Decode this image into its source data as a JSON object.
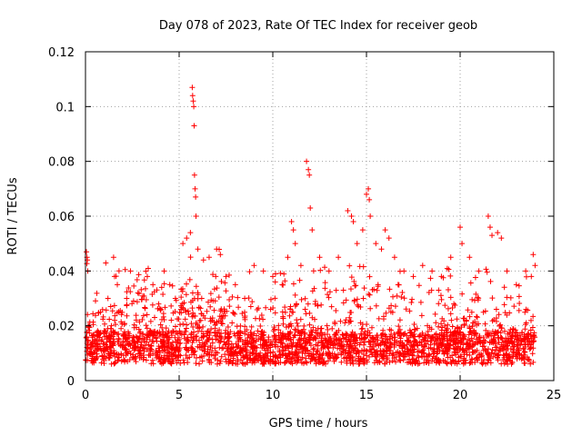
{
  "chart_data": {
    "type": "scatter",
    "title": "Day 078 of 2023, Rate Of TEC Index for receiver geob",
    "xlabel": "GPS time / hours",
    "ylabel": "ROTI / TECUs",
    "xlim": [
      0,
      25
    ],
    "ylim": [
      0,
      0.12
    ],
    "xticks": [
      0,
      5,
      10,
      15,
      20,
      25
    ],
    "yticks": [
      0,
      0.02,
      0.04,
      0.06,
      0.08,
      0.1,
      0.12
    ],
    "xtick_labels": [
      "0",
      "5",
      "10",
      "15",
      "20",
      "25"
    ],
    "ytick_labels": [
      "0",
      "0.02",
      "0.04",
      "0.06",
      "0.08",
      "0.1",
      "0.12"
    ],
    "grid": true,
    "marker": "+",
    "series_color": "#ff0000",
    "series": [
      {
        "x": [
          0.05,
          0.08,
          0.1,
          0.12,
          0.15,
          0.2,
          0.3,
          0.5,
          0.8,
          1.2,
          1.5,
          1.55,
          1.7,
          2.2,
          2.4,
          2.8,
          3.3,
          3.6,
          4.2,
          4.5,
          4.8,
          5.2,
          5.4,
          5.6,
          5.7,
          5.72,
          5.75,
          5.78,
          5.8,
          5.82,
          5.85,
          5.88,
          5.9,
          6.0,
          6.3,
          6.6,
          7.0,
          7.2,
          7.5,
          8.0,
          8.5,
          9.0,
          9.5,
          10.0,
          10.5,
          10.8,
          11.0,
          11.1,
          11.2,
          11.5,
          11.8,
          11.9,
          11.95,
          12.0,
          12.1,
          12.5,
          13.0,
          13.5,
          14.0,
          14.2,
          14.3,
          14.5,
          14.8,
          15.0,
          15.1,
          15.15,
          15.2,
          15.5,
          15.8,
          16.0,
          16.2,
          16.5,
          17.0,
          17.5,
          18.0,
          18.5,
          19.0,
          19.5,
          20.0,
          20.1,
          20.5,
          21.0,
          21.5,
          21.6,
          21.7,
          22.0,
          22.2,
          22.5,
          23.0,
          23.5,
          23.8,
          23.9,
          24.0
        ],
        "y": [
          0.047,
          0.045,
          0.044,
          0.04,
          0.02,
          0.01,
          0.012,
          0.015,
          0.025,
          0.03,
          0.045,
          0.038,
          0.035,
          0.03,
          0.04,
          0.032,
          0.038,
          0.035,
          0.04,
          0.035,
          0.03,
          0.05,
          0.052,
          0.054,
          0.107,
          0.104,
          0.102,
          0.1,
          0.093,
          0.075,
          0.07,
          0.067,
          0.06,
          0.048,
          0.044,
          0.045,
          0.048,
          0.046,
          0.038,
          0.035,
          0.03,
          0.042,
          0.04,
          0.038,
          0.035,
          0.045,
          0.058,
          0.055,
          0.05,
          0.042,
          0.08,
          0.077,
          0.075,
          0.063,
          0.055,
          0.045,
          0.04,
          0.045,
          0.062,
          0.06,
          0.058,
          0.05,
          0.055,
          0.068,
          0.07,
          0.066,
          0.06,
          0.05,
          0.048,
          0.055,
          0.052,
          0.045,
          0.04,
          0.038,
          0.042,
          0.04,
          0.038,
          0.045,
          0.056,
          0.05,
          0.045,
          0.04,
          0.06,
          0.056,
          0.053,
          0.054,
          0.052,
          0.04,
          0.035,
          0.04,
          0.038,
          0.046,
          0.042
        ]
      }
    ]
  }
}
